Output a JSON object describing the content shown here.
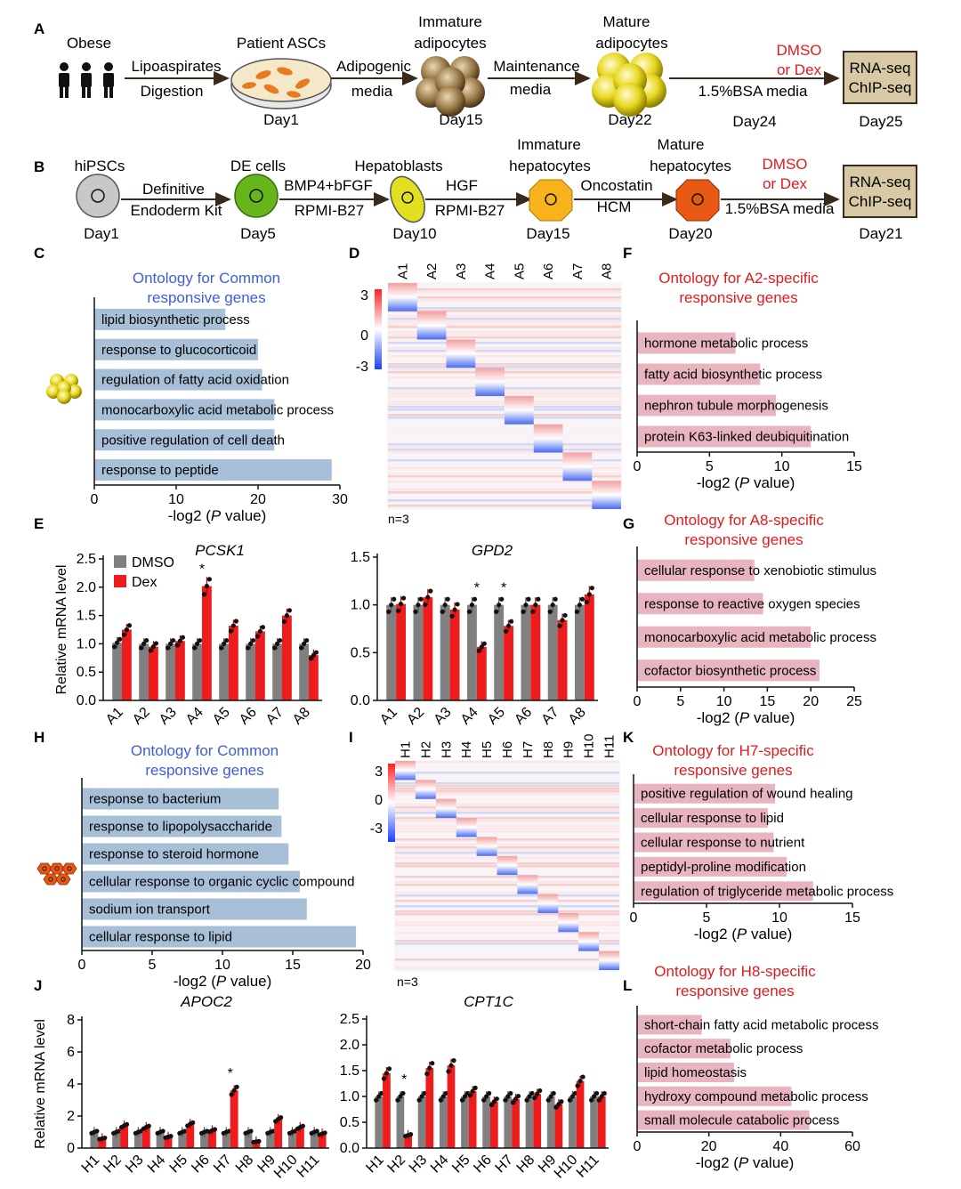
{
  "panel_letters": [
    "A",
    "B",
    "C",
    "D",
    "E",
    "F",
    "G",
    "H",
    "I",
    "J",
    "K",
    "L"
  ],
  "panelA": {
    "obese": "Obese",
    "lipoaspirates": "Lipoaspirates",
    "digestion": "Digestion",
    "patient_ascs": "Patient ASCs",
    "day1": "Day1",
    "adipogenic": "Adipogenic",
    "media": "media",
    "immature_1": "Immature",
    "immature_2": "adipocytes",
    "day15": "Day15",
    "maintenance": "Maintenance",
    "media2": "media",
    "mature_1": "Mature",
    "mature_2": "adipocytes",
    "day22": "Day22",
    "dmso": "DMSO",
    "or_dex": "or Dex",
    "bsa": "1.5%BSA media",
    "day24": "Day24",
    "rnaseq": "RNA-seq",
    "chipseq": "ChIP-seq",
    "day25": "Day25"
  },
  "panelB": {
    "hipscs": "hiPSCs",
    "day1": "Day1",
    "definitive": "Definitive",
    "endoderm": "Endoderm Kit",
    "de_cells": "DE cells",
    "day5": "Day5",
    "bmp4": "BMP4+bFGF",
    "rpmi1": "RPMI-B27",
    "hepatoblasts": "Hepatoblasts",
    "day10": "Day10",
    "hgf": "HGF",
    "rpmi2": "RPMI-B27",
    "immature_1": "Immature",
    "immature_2": "hepatocytes",
    "day15": "Day15",
    "oncostatin": "Oncostatin",
    "hcm": "HCM",
    "mature_1": "Mature",
    "mature_2": "hepatocytes",
    "day20": "Day20",
    "dmso": "DMSO",
    "or_dex": "or Dex",
    "bsa": "1.5%BSA media",
    "rnaseq": "RNA-seq",
    "chipseq": "ChIP-seq",
    "day21": "Day21"
  },
  "heatmapD": {
    "cols": [
      "A1",
      "A2",
      "A3",
      "A4",
      "A5",
      "A6",
      "A7",
      "A8"
    ],
    "scale": [
      "3",
      "0",
      "-3"
    ],
    "n": "n=3"
  },
  "heatmapI": {
    "cols": [
      "H1",
      "H2",
      "H3",
      "H4",
      "H5",
      "H6",
      "H7",
      "H8",
      "H9",
      "H10",
      "H11"
    ],
    "scale": [
      "3",
      "0",
      "-3"
    ],
    "n": "n=3"
  },
  "chart_data": [
    {
      "id": "C",
      "type": "bar",
      "title": "Ontology for Common responsive genes",
      "title_lines": [
        "Ontology for Common",
        "responsive genes"
      ],
      "xlabel": "-log2 (P value)",
      "xlim": [
        0,
        30
      ],
      "ticks": [
        0,
        10,
        20,
        30
      ],
      "categories": [
        "lipid biosynthetic process",
        "response to glucocorticoid",
        "regulation of fatty acid oxidation",
        "monocarboxylic acid metabolic process",
        "positive regulation of cell death",
        "response to peptide"
      ],
      "values": [
        16,
        20,
        20.5,
        22,
        22,
        29
      ]
    },
    {
      "id": "F",
      "type": "bar",
      "title": "Ontology for A2-specific responsive genes",
      "title_lines": [
        "Ontology for A2-specific",
        "responsive genes"
      ],
      "xlabel": "-log2 (P value)",
      "xlim": [
        0,
        15
      ],
      "ticks": [
        0,
        5,
        10,
        15
      ],
      "categories": [
        "hormone metabolic process",
        "fatty acid biosynthetic process",
        "nephron tubule morphogenesis",
        "protein K63-linked deubiquitination"
      ],
      "values": [
        6.8,
        8.5,
        9.6,
        12
      ]
    },
    {
      "id": "G",
      "type": "bar",
      "title": "Ontology for A8-specific responsive genes",
      "title_lines": [
        "Ontology for A8-specific",
        "responsive genes"
      ],
      "xlabel": "-log2 (P value)",
      "xlim": [
        0,
        25
      ],
      "ticks": [
        0,
        5,
        10,
        15,
        20,
        25
      ],
      "categories": [
        "cellular response to xenobiotic stimulus",
        "response to reactive oxygen species",
        "monocarboxylic acid metabolic process",
        "cofactor biosynthetic process"
      ],
      "values": [
        13.5,
        14.5,
        20,
        21
      ]
    },
    {
      "id": "H",
      "type": "bar",
      "title": "Ontology for Common responsive genes",
      "title_lines": [
        "Ontology for Common",
        "responsive genes"
      ],
      "xlabel": "-log2 (P value)",
      "xlim": [
        0,
        20
      ],
      "ticks": [
        0,
        5,
        10,
        15,
        20
      ],
      "categories": [
        "response to bacterium",
        "response to lipopolysaccharide",
        "response to steroid hormone",
        "cellular response to organic cyclic compound",
        "sodium ion transport",
        "cellular response to lipid"
      ],
      "values": [
        14,
        14.2,
        14.7,
        15.5,
        16,
        19.5
      ]
    },
    {
      "id": "K",
      "type": "bar",
      "title": "Ontology for H7-specific responsive genes",
      "title_lines": [
        "Ontology for H7-specific",
        "responsive genes"
      ],
      "xlabel": "-log2 (P value)",
      "xlim": [
        0,
        15
      ],
      "ticks": [
        0,
        5,
        10,
        15
      ],
      "categories": [
        "positive regulation of wound healing",
        "cellular response to lipid",
        "cellular response to nutrient",
        "peptidyl-proline modification",
        "regulation of triglyceride metabolic process"
      ],
      "values": [
        9.7,
        9.2,
        9.6,
        10.5,
        12.3
      ]
    },
    {
      "id": "L",
      "type": "bar",
      "title": "Ontology for H8-specific responsive genes",
      "title_lines": [
        "Ontology for H8-specific",
        "responsive genes"
      ],
      "xlabel": "-log2 (P value)",
      "xlim": [
        0,
        60
      ],
      "ticks": [
        0,
        20,
        40,
        60
      ],
      "categories": [
        "short-chain fatty acid metabolic process",
        "cofactor metabolic process",
        "lipid homeostasis",
        "hydroxy compound metabolic process",
        "small molecule catabolic process"
      ],
      "values": [
        18,
        26,
        27,
        43,
        48
      ]
    },
    {
      "id": "E1",
      "type": "bar",
      "title": "PCSK1",
      "ylabel": "Relative mRNA level",
      "ylim": [
        0,
        2.5
      ],
      "ticks": [
        0.0,
        0.5,
        1.0,
        1.5,
        2.0,
        2.5
      ],
      "categories": [
        "A1",
        "A2",
        "A3",
        "A4",
        "A5",
        "A6",
        "A7",
        "A8"
      ],
      "series": [
        {
          "name": "DMSO",
          "values": [
            1.02,
            1.0,
            1.0,
            1.0,
            1.0,
            1.0,
            1.0,
            1.0
          ]
        },
        {
          "name": "Dex",
          "values": [
            1.25,
            0.95,
            1.05,
            2.02,
            1.32,
            1.22,
            1.5,
            0.8
          ]
        }
      ],
      "significant": [
        "A4"
      ]
    },
    {
      "id": "E2",
      "type": "bar",
      "title": "GPD2",
      "ylim": [
        0,
        1.5
      ],
      "ticks": [
        0.0,
        0.5,
        1.0,
        1.5
      ],
      "categories": [
        "A1",
        "A2",
        "A3",
        "A4",
        "A5",
        "A6",
        "A7",
        "A8"
      ],
      "series": [
        {
          "name": "DMSO",
          "values": [
            1.0,
            1.0,
            1.0,
            1.0,
            1.0,
            1.0,
            1.0,
            1.0
          ]
        },
        {
          "name": "Dex",
          "values": [
            1.01,
            1.08,
            0.95,
            0.56,
            0.78,
            1.0,
            0.84,
            1.11
          ]
        }
      ],
      "significant": [
        "A4",
        "A5"
      ]
    },
    {
      "id": "J1",
      "type": "bar",
      "title": "APOC2",
      "ylabel": "Relative mRNA level",
      "ylim": [
        0,
        8
      ],
      "ticks": [
        0,
        2,
        4,
        6,
        8
      ],
      "categories": [
        "H1",
        "H2",
        "H3",
        "H4",
        "H5",
        "H6",
        "H7",
        "H8",
        "H9",
        "H10",
        "H11"
      ],
      "series": [
        {
          "name": "DMSO",
          "values": [
            1.0,
            1.0,
            1.0,
            1.0,
            1.0,
            1.0,
            1.0,
            1.0,
            1.0,
            1.0,
            1.0
          ]
        },
        {
          "name": "Dex",
          "values": [
            0.6,
            1.4,
            1.3,
            0.7,
            1.5,
            1.1,
            3.6,
            0.4,
            1.8,
            1.3,
            0.9
          ]
        }
      ],
      "significant": [
        "H7"
      ]
    },
    {
      "id": "J2",
      "type": "bar",
      "title": "CPT1C",
      "ylim": [
        0,
        2.5
      ],
      "ticks": [
        0.0,
        0.5,
        1.0,
        1.5,
        2.0,
        2.5
      ],
      "categories": [
        "H1",
        "H2",
        "H3",
        "H4",
        "H5",
        "H6",
        "H7",
        "H8",
        "H9",
        "H10",
        "H11"
      ],
      "series": [
        {
          "name": "DMSO",
          "values": [
            1.0,
            1.0,
            1.0,
            1.0,
            1.0,
            1.0,
            1.0,
            1.0,
            1.0,
            1.0,
            1.0
          ]
        },
        {
          "name": "Dex",
          "values": [
            1.45,
            0.25,
            1.55,
            1.6,
            1.1,
            0.9,
            0.95,
            1.05,
            0.85,
            1.3,
            1.0
          ]
        }
      ],
      "significant": [
        "H2"
      ]
    }
  ],
  "legendE": {
    "dmso": "DMSO",
    "dex": "Dex"
  },
  "colors": {
    "blue_bar": "#a7c0d8",
    "pink_bar": "#e8b4bf",
    "dmso": "#808080",
    "dex": "#ee1c1c",
    "title_blue": "#3d5ce0",
    "title_red": "#e31a1c"
  }
}
